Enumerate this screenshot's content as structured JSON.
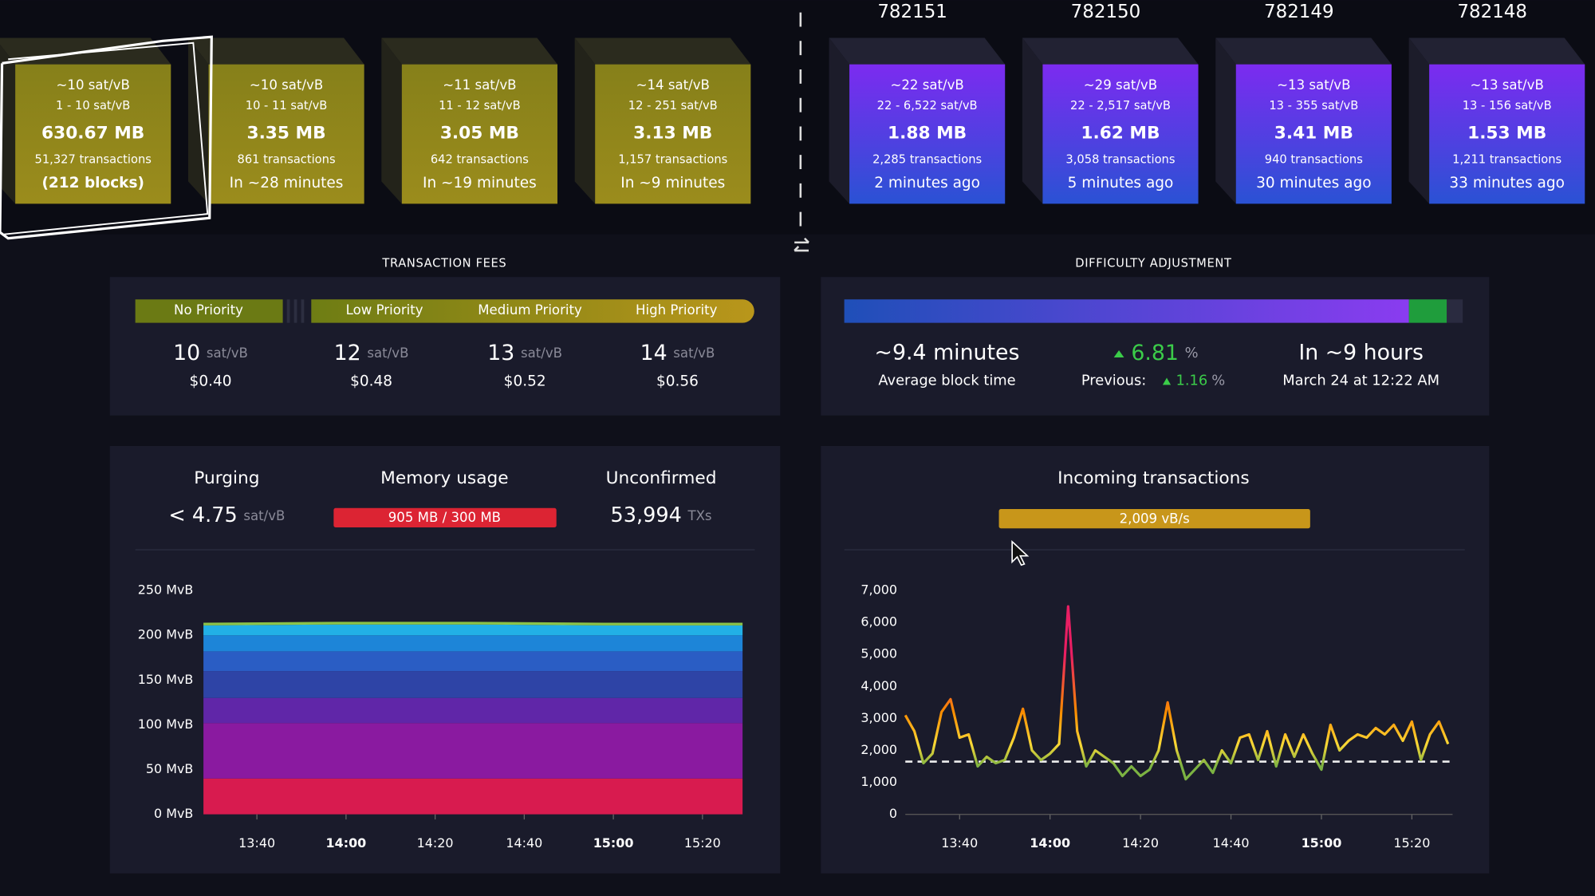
{
  "mempool_blocks": [
    {
      "fee": "~10 sat/vB",
      "range": "1 - 10 sat/vB",
      "size": "630.67 MB",
      "transactions": "51,327 transactions",
      "eta": "(212 blocks)"
    },
    {
      "fee": "~10 sat/vB",
      "range": "10 - 11 sat/vB",
      "size": "3.35 MB",
      "transactions": "861 transactions",
      "eta": "In ~28 minutes"
    },
    {
      "fee": "~11 sat/vB",
      "range": "11 - 12 sat/vB",
      "size": "3.05 MB",
      "transactions": "642 transactions",
      "eta": "In ~19 minutes"
    },
    {
      "fee": "~14 sat/vB",
      "range": "12 - 251 sat/vB",
      "size": "3.13 MB",
      "transactions": "1,157 transactions",
      "eta": "In ~9 minutes"
    }
  ],
  "blocks": [
    {
      "height": "782151",
      "fee": "~22 sat/vB",
      "range": "22 - 6,522 sat/vB",
      "size": "1.88 MB",
      "transactions": "2,285 transactions",
      "time": "2 minutes ago"
    },
    {
      "height": "782150",
      "fee": "~29 sat/vB",
      "range": "22 - 2,517 sat/vB",
      "size": "1.62 MB",
      "transactions": "3,058 transactions",
      "time": "5 minutes ago"
    },
    {
      "height": "782149",
      "fee": "~13 sat/vB",
      "range": "13 - 355 sat/vB",
      "size": "3.41 MB",
      "transactions": "940 transactions",
      "time": "30 minutes ago"
    },
    {
      "height": "782148",
      "fee": "~13 sat/vB",
      "range": "13 - 156 sat/vB",
      "size": "1.53 MB",
      "transactions": "1,211 transactions",
      "time": "33 minutes ago"
    }
  ],
  "fees": {
    "title": "TRANSACTION FEES",
    "priorities": [
      {
        "label": "No Priority",
        "value": "10",
        "unit": "sat/vB",
        "usd": "$0.40"
      },
      {
        "label": "Low Priority",
        "value": "12",
        "unit": "sat/vB",
        "usd": "$0.48"
      },
      {
        "label": "Medium Priority",
        "value": "13",
        "unit": "sat/vB",
        "usd": "$0.52"
      },
      {
        "label": "High Priority",
        "value": "14",
        "unit": "sat/vB",
        "usd": "$0.56"
      }
    ]
  },
  "difficulty": {
    "title": "DIFFICULTY ADJUSTMENT",
    "progress": [
      91.3,
      6.1
    ],
    "average": "~9.4 minutes",
    "average_label": "Average block time",
    "change": "6.81",
    "change_unit": "%",
    "previous_label": "Previous:",
    "previous": "1.16",
    "previous_unit": "%",
    "eta": "In ~9 hours",
    "eta_date": "March 24 at 12:22 AM"
  },
  "stats": {
    "purging_label": "Purging",
    "purging_value": "< 4.75",
    "purging_unit": "sat/vB",
    "memory_label": "Memory usage",
    "memory_value": "905 MB / 300 MB",
    "unconfirmed_label": "Unconfirmed",
    "unconfirmed_value": "53,994",
    "unconfirmed_unit": "TXs"
  },
  "incoming": {
    "title": "Incoming transactions",
    "rate": "2,009 vB/s"
  },
  "chart_data": [
    {
      "type": "area",
      "stacked": true,
      "x": [
        808,
        838,
        868,
        898,
        929
      ],
      "xlim": [
        808,
        929
      ],
      "xticks": [
        {
          "value": 820,
          "label": "13:40"
        },
        {
          "value": 840,
          "label": "14:00"
        },
        {
          "value": 860,
          "label": "14:20"
        },
        {
          "value": 880,
          "label": "14:40"
        },
        {
          "value": 900,
          "label": "15:00"
        },
        {
          "value": 920,
          "label": "15:20"
        }
      ],
      "ylim": [
        0,
        250
      ],
      "yticks": [
        {
          "value": 0,
          "label": "0 MvB"
        },
        {
          "value": 50,
          "label": "50 MvB"
        },
        {
          "value": 100,
          "label": "100 MvB"
        },
        {
          "value": 150,
          "label": "150 MvB"
        },
        {
          "value": 200,
          "label": "200 MvB"
        },
        {
          "value": 250,
          "label": "250 MvB"
        }
      ],
      "series": [
        {
          "color": "#d81b4f",
          "values": [
            40,
            40,
            40,
            40,
            40
          ]
        },
        {
          "color": "#8a1aa0",
          "values": [
            62,
            62,
            62,
            62,
            62
          ]
        },
        {
          "color": "#6026a8",
          "values": [
            28,
            28,
            28,
            28,
            28
          ]
        },
        {
          "color": "#2e44a6",
          "values": [
            30,
            30,
            30,
            30,
            30
          ]
        },
        {
          "color": "#2a5dc4",
          "values": [
            22,
            22,
            22,
            22,
            22
          ]
        },
        {
          "color": "#1d85d8",
          "values": [
            18,
            18,
            18,
            18,
            18
          ]
        },
        {
          "color": "#22b0e6",
          "values": [
            11,
            12,
            12,
            11,
            11
          ]
        },
        {
          "color": "#8bc34a",
          "values": [
            3,
            3,
            3,
            3,
            3
          ]
        }
      ]
    },
    {
      "type": "line",
      "x": [
        808,
        810,
        812,
        814,
        816,
        818,
        820,
        822,
        824,
        826,
        828,
        830,
        832,
        834,
        836,
        838,
        840,
        842,
        844,
        846,
        848,
        850,
        852,
        854,
        856,
        858,
        860,
        862,
        864,
        866,
        868,
        870,
        872,
        874,
        876,
        878,
        880,
        882,
        884,
        886,
        888,
        890,
        892,
        894,
        896,
        898,
        900,
        902,
        904,
        906,
        908,
        910,
        912,
        914,
        916,
        918,
        920,
        922,
        924,
        926,
        928
      ],
      "values": [
        3100,
        2600,
        1600,
        1900,
        3200,
        3600,
        2400,
        2500,
        1500,
        1800,
        1600,
        1700,
        2400,
        3300,
        2000,
        1700,
        1900,
        2200,
        6500,
        2600,
        1500,
        2000,
        1800,
        1600,
        1200,
        1500,
        1200,
        1400,
        2000,
        3500,
        2000,
        1100,
        1400,
        1700,
        1300,
        2000,
        1600,
        2400,
        2500,
        1700,
        2600,
        1500,
        2500,
        1800,
        2500,
        1900,
        1400,
        2800,
        2000,
        2300,
        2500,
        2400,
        2700,
        2500,
        2800,
        2300,
        2900,
        1700,
        2500,
        2900,
        2200
      ],
      "xlim": [
        808,
        929
      ],
      "xticks": [
        {
          "value": 820,
          "label": "13:40"
        },
        {
          "value": 840,
          "label": "14:00"
        },
        {
          "value": 860,
          "label": "14:20"
        },
        {
          "value": 880,
          "label": "14:40"
        },
        {
          "value": 900,
          "label": "15:00"
        },
        {
          "value": 920,
          "label": "15:20"
        }
      ],
      "ylim": [
        0,
        7000
      ],
      "yticks": [
        0,
        {
          "value": 1000,
          "label": "1,000"
        },
        {
          "value": 2000,
          "label": "2,000"
        },
        {
          "value": 3000,
          "label": "3,000"
        },
        {
          "value": 4000,
          "label": "4,000"
        },
        {
          "value": 5000,
          "label": "5,000"
        },
        {
          "value": 6000,
          "label": "6,000"
        },
        {
          "value": 7000,
          "label": "7,000"
        }
      ],
      "reference_line": 1650,
      "gradient_stops": [
        [
          1500,
          "#7cb342"
        ],
        [
          2200,
          "#fdd835"
        ],
        [
          3200,
          "#fb8c00"
        ],
        [
          5000,
          "#e91e63"
        ]
      ]
    }
  ]
}
